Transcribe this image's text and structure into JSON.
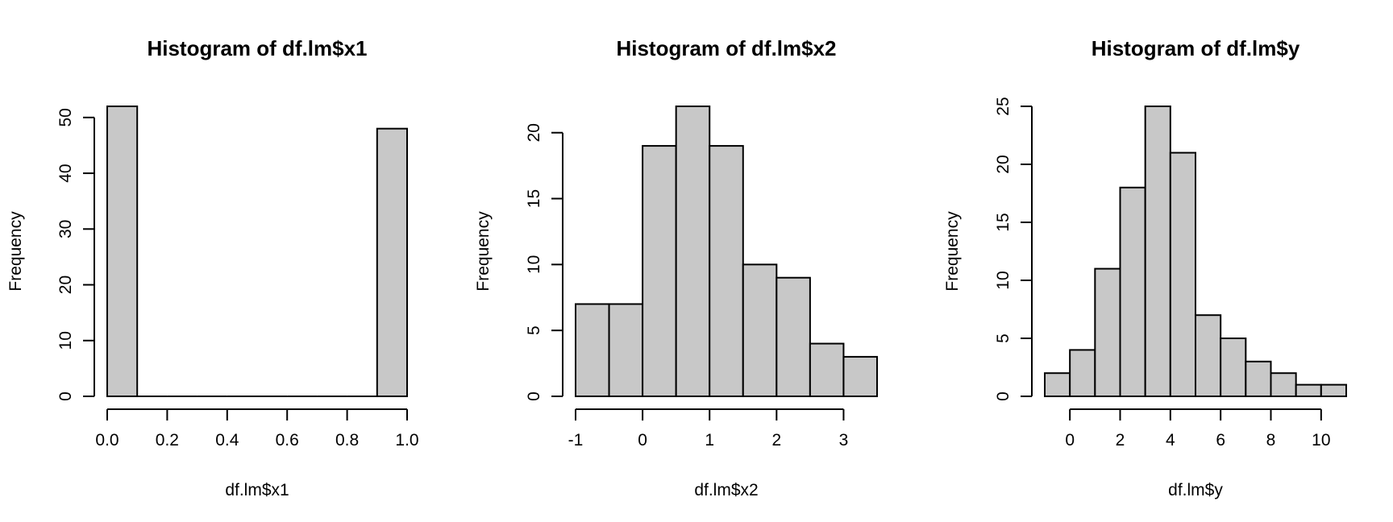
{
  "chart_data": [
    {
      "type": "bar",
      "title": "Histogram of df.lm$x1",
      "xlabel": "df.lm$x1",
      "ylabel": "Frequency",
      "breaks": [
        0.0,
        0.1,
        0.2,
        0.3,
        0.4,
        0.5,
        0.6,
        0.7,
        0.8,
        0.9,
        1.0
      ],
      "counts": [
        52,
        0,
        0,
        0,
        0,
        0,
        0,
        0,
        0,
        48
      ],
      "xlim": [
        0.0,
        1.0
      ],
      "ylim": [
        0,
        52
      ],
      "xticks": [
        0.0,
        0.2,
        0.4,
        0.6,
        0.8,
        1.0
      ],
      "xtick_labels": [
        "0.0",
        "0.2",
        "0.4",
        "0.6",
        "0.8",
        "1.0"
      ],
      "yticks": [
        0,
        10,
        20,
        30,
        40,
        50
      ],
      "ytick_labels": [
        "0",
        "10",
        "20",
        "30",
        "40",
        "50"
      ],
      "grid": false
    },
    {
      "type": "bar",
      "title": "Histogram of df.lm$x2",
      "xlabel": "df.lm$x2",
      "ylabel": "Frequency",
      "breaks": [
        -1.0,
        -0.5,
        0.0,
        0.5,
        1.0,
        1.5,
        2.0,
        2.5,
        3.0,
        3.5
      ],
      "counts": [
        7,
        7,
        19,
        22,
        19,
        10,
        9,
        4,
        3
      ],
      "xlim": [
        -1.0,
        3.5
      ],
      "ylim": [
        0,
        22
      ],
      "xticks": [
        -1,
        0,
        1,
        2,
        3
      ],
      "xtick_labels": [
        "-1",
        "0",
        "1",
        "2",
        "3"
      ],
      "yticks": [
        0,
        5,
        10,
        15,
        20
      ],
      "ytick_labels": [
        "0",
        "5",
        "10",
        "15",
        "20"
      ],
      "grid": false
    },
    {
      "type": "bar",
      "title": "Histogram of df.lm$y",
      "xlabel": "df.lm$y",
      "ylabel": "Frequency",
      "breaks": [
        -1,
        0,
        1,
        2,
        3,
        4,
        5,
        6,
        7,
        8,
        9,
        10,
        11
      ],
      "counts": [
        2,
        4,
        11,
        18,
        25,
        21,
        7,
        5,
        3,
        2,
        1,
        1
      ],
      "xlim": [
        -1,
        11
      ],
      "ylim": [
        0,
        25
      ],
      "xticks": [
        0,
        2,
        4,
        6,
        8,
        10
      ],
      "xtick_labels": [
        "0",
        "2",
        "4",
        "6",
        "8",
        "10"
      ],
      "yticks": [
        0,
        5,
        10,
        15,
        20,
        25
      ],
      "ytick_labels": [
        "0",
        "5",
        "10",
        "15",
        "20",
        "25"
      ],
      "grid": false
    }
  ]
}
